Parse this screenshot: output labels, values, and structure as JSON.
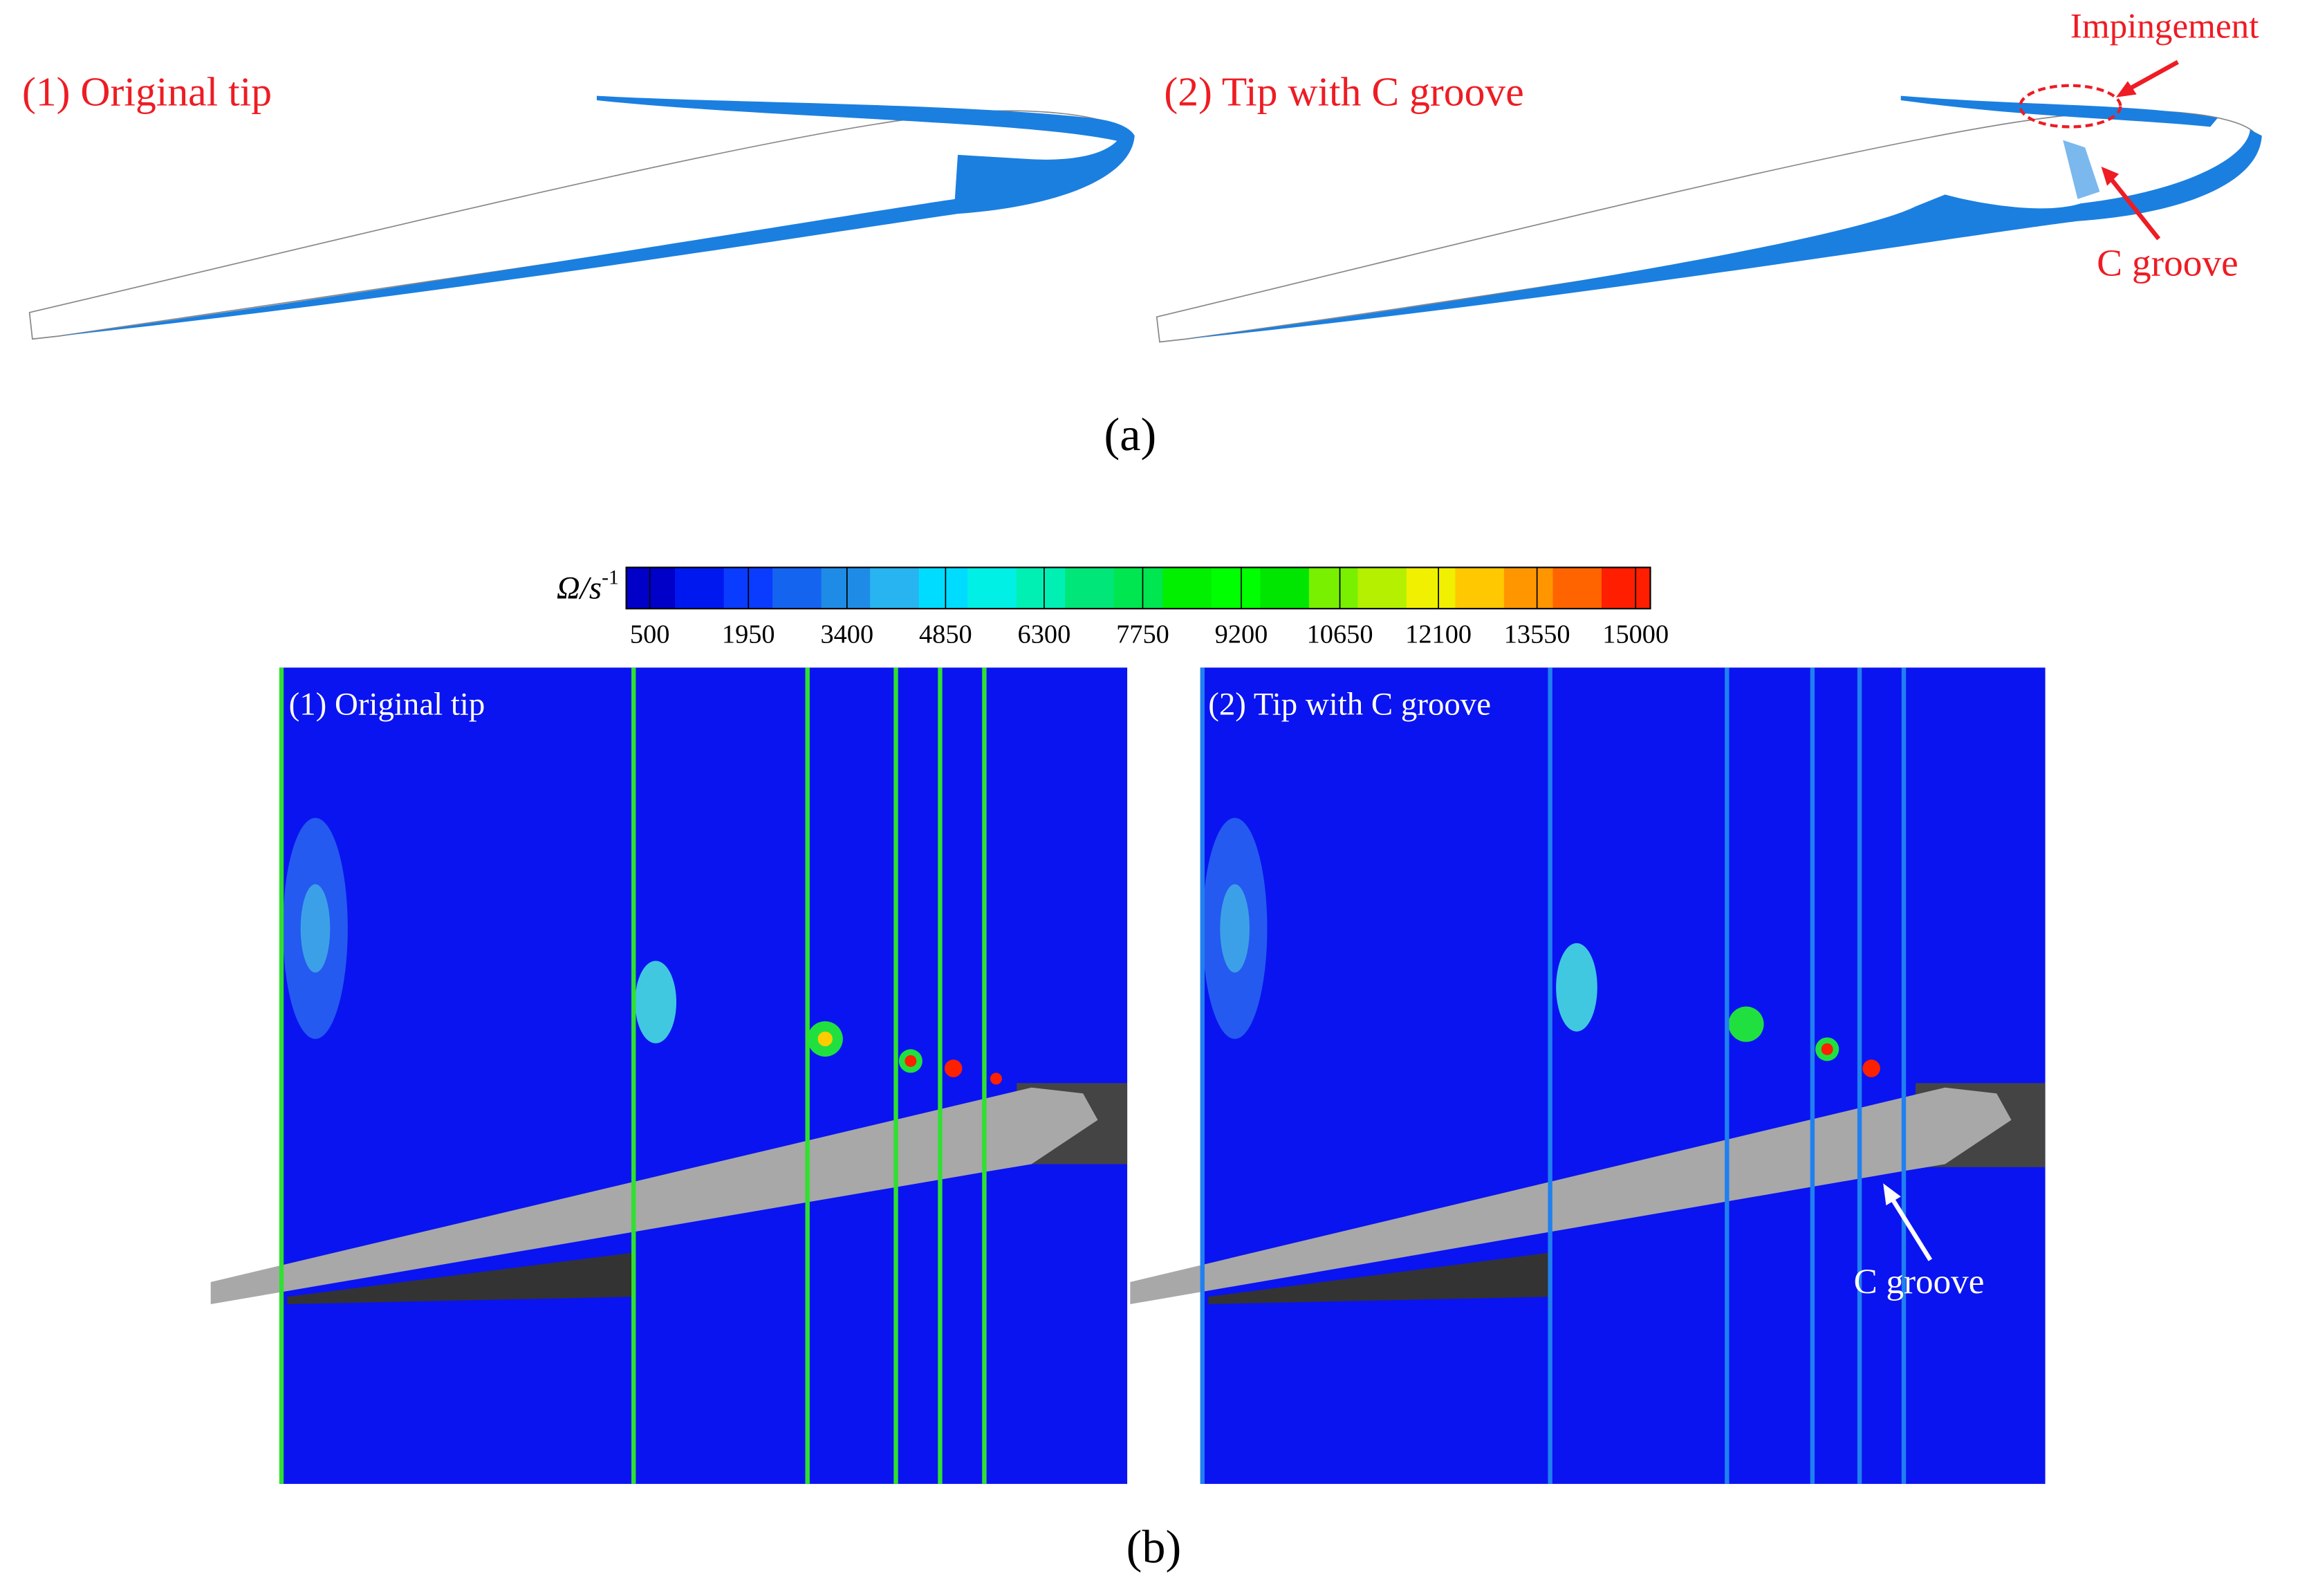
{
  "panel_a": {
    "left_label": "(1) Original tip",
    "right_label": "(2) Tip with C groove",
    "annotation_impingement": "Impingement",
    "annotation_c_groove": "C groove",
    "caption": "(a)"
  },
  "panel_b": {
    "colorbar": {
      "label": "Ω/s",
      "label_exponent": "-1",
      "ticks": [
        500,
        1950,
        3400,
        4850,
        6300,
        7750,
        9200,
        10650,
        12100,
        13550,
        15000
      ],
      "colors": [
        "#0000c8",
        "#0018f0",
        "#0a3cff",
        "#1464f0",
        "#1e8ce6",
        "#28b4f0",
        "#00dcff",
        "#00f0e6",
        "#00f0b4",
        "#00e678",
        "#00e650",
        "#00f000",
        "#00ff00",
        "#00e600",
        "#78f000",
        "#b4f000",
        "#f0f000",
        "#ffc800",
        "#ff9600",
        "#ff6400",
        "#ff1e00"
      ]
    },
    "left_label": "(1) Original tip",
    "right_label": "(2) Tip with C groove",
    "annotation_c_groove": "C groove",
    "caption": "(b)"
  }
}
